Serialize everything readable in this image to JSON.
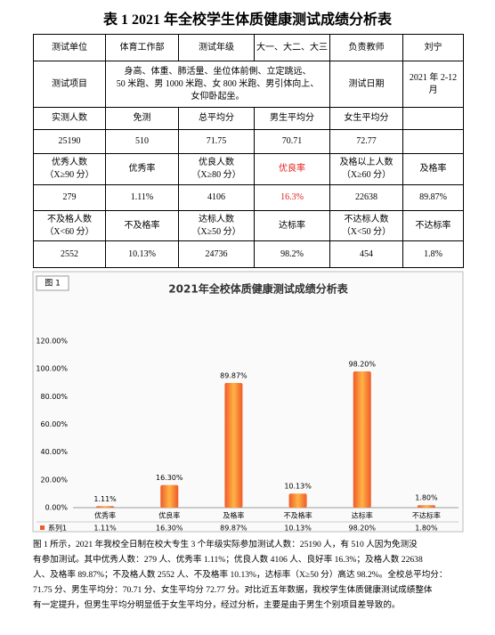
{
  "title": "表 1  2021 年全校学生体质健康测试成绩分析表",
  "table": {
    "rows": [
      [
        "测试单位",
        "体育工作部",
        "测试年级",
        "大一、大二、大三",
        "负责教师",
        "刘宁"
      ],
      [
        "测试项目",
        [
          "身高、体重、肺活量、坐位体前側、立定跳远、",
          "50 米跑、男 1000 米跑、女 800 米跑、男引体向上、",
          "女仰卧起坐。"
        ],
        "测试日期",
        "2021 年 2-12 月"
      ],
      [
        "实测人数",
        "免测",
        "总平均分",
        "男生平均分",
        "女生平均分"
      ],
      [
        "25190",
        "510",
        "71.75",
        "70.71",
        "72.77"
      ],
      [
        [
          "优秀人数",
          "（X≥90 分）"
        ],
        "优秀率",
        [
          "优良人数",
          "（X≥80 分）"
        ],
        "优良率",
        [
          "及格以上人数",
          "（X≥60 分）"
        ],
        "及格率"
      ],
      [
        "279",
        "1.11%",
        "4106",
        "16.3%",
        "22638",
        "89.87%"
      ],
      [
        [
          "不及格人数",
          "（X<60 分）"
        ],
        "不及格率",
        [
          "达标人数",
          "（X≥50 分）"
        ],
        "达标率",
        [
          "不达标人数",
          "（X<50 分）"
        ],
        "不达标率"
      ],
      [
        "2552",
        "10.13%",
        "24736",
        "98.2%",
        "454",
        "1.8%"
      ]
    ]
  },
  "chart_data": {
    "type": "bar",
    "figure_label": "图 1",
    "title": "2021年全校体质健康测试成绩分析表",
    "categories": [
      "优秀率",
      "优良率",
      "及格率",
      "不及格率",
      "达标率",
      "不达标率"
    ],
    "series": [
      {
        "name": "系列1",
        "color": "#f05a28",
        "values": [
          1.11,
          16.3,
          89.87,
          10.13,
          98.2,
          1.8
        ],
        "value_labels": [
          "1.11%",
          "16.30%",
          "89.87%",
          "10.13%",
          "98.20%",
          "1.80%"
        ]
      }
    ],
    "ylim": [
      0,
      120
    ],
    "yticks": [
      {
        "value": 0,
        "label": "0.00%"
      },
      {
        "value": 20,
        "label": "20.00%"
      },
      {
        "value": 40,
        "label": "40.00%"
      },
      {
        "value": 60,
        "label": "60.00%"
      },
      {
        "value": 80,
        "label": "80.00%"
      },
      {
        "value": 100,
        "label": "100.00%"
      },
      {
        "value": 120,
        "label": "120.00%"
      }
    ]
  },
  "paragraph": [
    "图 1 所示，2021 年我校全日制在校大专生 3 个年级实际参加测试人数：25190 人，有 510 人因为免测没",
    "有参加测试。其中优秀人数：279 人、优秀率 1.11%；优良人数 4106 人、良好率 16.3%；及格人数 22638",
    "人、及格率 89.87%；不及格人数 2552 人、不及格率 10.13%，达标率（X≥50 分）高达 98.2%。全校总平均分：",
    "71.75 分、男生平均分：70.71 分、女生平均分 72.77 分。对比近五年数据，我校学生体质健康测试成绩整体",
    "有一定提升，但男生平均分明显低于女生平均分，经过分析，主要是由于男生个别项目差导致的。"
  ]
}
